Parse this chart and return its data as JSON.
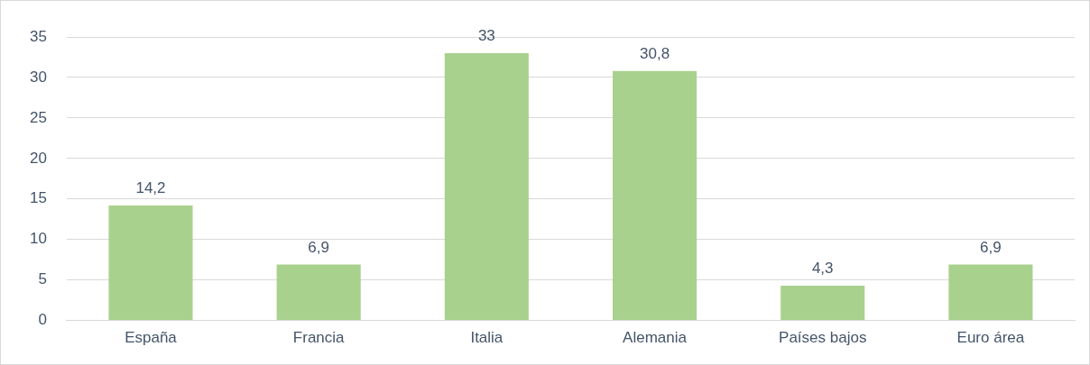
{
  "chart_data": {
    "type": "bar",
    "categories": [
      "España",
      "Francia",
      "Italia",
      "Alemania",
      "Países bajos",
      "Euro área"
    ],
    "values": [
      14.2,
      6.9,
      33,
      30.8,
      4.3,
      6.9
    ],
    "value_labels": [
      "14,2",
      "6,9",
      "33",
      "30,8",
      "4,3",
      "6,9"
    ],
    "color": "#a9d18e",
    "ylim": [
      0,
      35
    ],
    "yticks": [
      0,
      5,
      10,
      15,
      20,
      25,
      30,
      35
    ],
    "grid": "y"
  }
}
